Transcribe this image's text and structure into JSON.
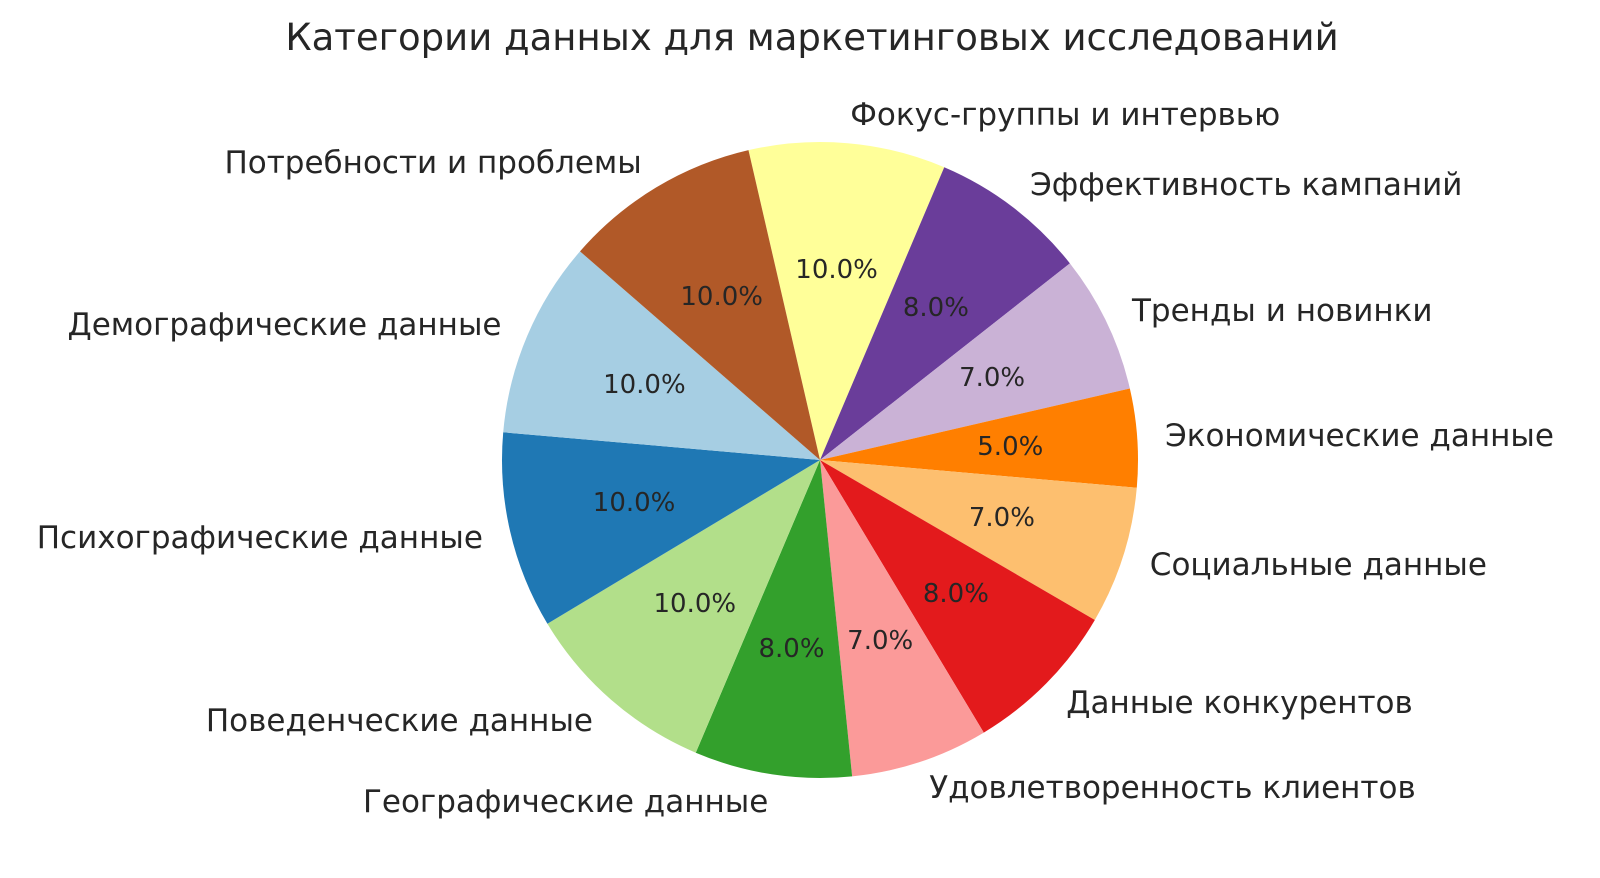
{
  "chart_data": {
    "type": "pie",
    "title": "Категории данных для маркетинговых исследований",
    "slices": [
      {
        "label": "Фокус-группы и интервью",
        "value": 10.0,
        "pct_label": "10.0%",
        "color": "#FFFF99"
      },
      {
        "label": "Эффективность кампаний",
        "value": 8.0,
        "pct_label": "8.0%",
        "color": "#6A3D9A"
      },
      {
        "label": "Тренды и новинки",
        "value": 7.0,
        "pct_label": "7.0%",
        "color": "#CAB2D6"
      },
      {
        "label": "Экономические данные",
        "value": 5.0,
        "pct_label": "5.0%",
        "color": "#FF7F00"
      },
      {
        "label": "Социальные данные",
        "value": 7.0,
        "pct_label": "7.0%",
        "color": "#FDBF6F"
      },
      {
        "label": "Данные конкурентов",
        "value": 8.0,
        "pct_label": "8.0%",
        "color": "#E31A1C"
      },
      {
        "label": "Удовлетворенность клиентов",
        "value": 7.0,
        "pct_label": "7.0%",
        "color": "#FB9A99"
      },
      {
        "label": "Географические данные",
        "value": 8.0,
        "pct_label": "8.0%",
        "color": "#33A02C"
      },
      {
        "label": "Поведенческие данные",
        "value": 10.0,
        "pct_label": "10.0%",
        "color": "#B2DF8A"
      },
      {
        "label": "Психографические данные",
        "value": 10.0,
        "pct_label": "10.0%",
        "color": "#1F78B4"
      },
      {
        "label": "Демографические данные",
        "value": 10.0,
        "pct_label": "10.0%",
        "color": "#A6CEE3"
      },
      {
        "label": "Потребности и проблемы",
        "value": 10.0,
        "pct_label": "10.0%",
        "color": "#B15928"
      }
    ],
    "layout": {
      "start_angle_deg": 103,
      "direction": "clockwise",
      "pct_distance": 0.6,
      "label_distance": 1.088,
      "background": "#ffffff",
      "text_color": "#262626",
      "legend": "none"
    }
  }
}
